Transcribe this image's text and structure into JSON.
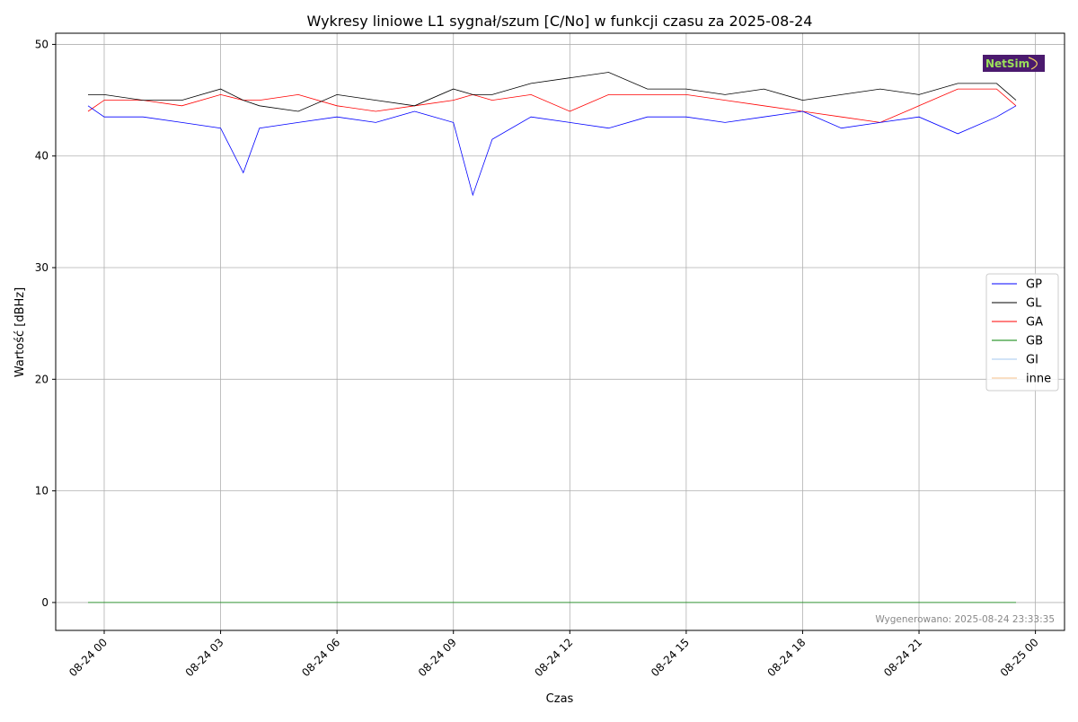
{
  "chart_data": {
    "type": "line",
    "title": "Wykresy liniowe L1 sygnał/szum [C/No] w funkcji czasu za 2025-08-24",
    "xlabel": "Czas",
    "ylabel": "Wartość [dBHz]",
    "ylim": [
      -2.5,
      51
    ],
    "yticks": [
      0,
      10,
      20,
      30,
      40,
      50
    ],
    "xlim": [
      "2025-08-23 22:45",
      "2025-08-25 00:45"
    ],
    "xticks": [
      {
        "t": "2025-08-24 00:00",
        "label": "08-24 00"
      },
      {
        "t": "2025-08-24 03:00",
        "label": "08-24 03"
      },
      {
        "t": "2025-08-24 06:00",
        "label": "08-24 06"
      },
      {
        "t": "2025-08-24 09:00",
        "label": "08-24 09"
      },
      {
        "t": "2025-08-24 12:00",
        "label": "08-24 12"
      },
      {
        "t": "2025-08-24 15:00",
        "label": "08-24 15"
      },
      {
        "t": "2025-08-24 18:00",
        "label": "08-24 18"
      },
      {
        "t": "2025-08-24 21:00",
        "label": "08-24 21"
      },
      {
        "t": "2025-08-25 00:00",
        "label": "08-25 00"
      }
    ],
    "grid": true,
    "legend_position": "center-right",
    "x": [
      "2025-08-23 23:35",
      "2025-08-24 00:00",
      "2025-08-24 01:00",
      "2025-08-24 02:00",
      "2025-08-24 03:00",
      "2025-08-24 03:35",
      "2025-08-24 04:00",
      "2025-08-24 05:00",
      "2025-08-24 06:00",
      "2025-08-24 07:00",
      "2025-08-24 08:00",
      "2025-08-24 09:00",
      "2025-08-24 09:30",
      "2025-08-24 10:00",
      "2025-08-24 11:00",
      "2025-08-24 12:00",
      "2025-08-24 13:00",
      "2025-08-24 14:00",
      "2025-08-24 15:00",
      "2025-08-24 16:00",
      "2025-08-24 17:00",
      "2025-08-24 18:00",
      "2025-08-24 19:00",
      "2025-08-24 20:00",
      "2025-08-24 21:00",
      "2025-08-24 22:00",
      "2025-08-24 23:00",
      "2025-08-24 23:30"
    ],
    "series": [
      {
        "name": "GP",
        "color": "#0000ff",
        "values": [
          44.5,
          43.5,
          43.5,
          43,
          42.5,
          38.5,
          42.5,
          43,
          43.5,
          43,
          44,
          43,
          36.5,
          41.5,
          43.5,
          43,
          42.5,
          43.5,
          43.5,
          43,
          43.5,
          44,
          42.5,
          43,
          43.5,
          42,
          43.5,
          44.5
        ]
      },
      {
        "name": "GL",
        "color": "#000000",
        "values": [
          45.5,
          45.5,
          45,
          45,
          46,
          45,
          44.5,
          44,
          45.5,
          45,
          44.5,
          46,
          45.5,
          45.5,
          46.5,
          47,
          47.5,
          46,
          46,
          45.5,
          46,
          45,
          45.5,
          46,
          45.5,
          46.5,
          46.5,
          45
        ]
      },
      {
        "name": "GA",
        "color": "#ff0000",
        "values": [
          44,
          45,
          45,
          44.5,
          45.5,
          45,
          45,
          45.5,
          44.5,
          44,
          44.5,
          45,
          45.5,
          45,
          45.5,
          44,
          45.5,
          45.5,
          45.5,
          45,
          44.5,
          44,
          43.5,
          43,
          44.5,
          46,
          46,
          44.5
        ]
      },
      {
        "name": "GB",
        "color": "#008000",
        "values": [
          0,
          0,
          0,
          0,
          0,
          0,
          0,
          0,
          0,
          0,
          0,
          0,
          0,
          0,
          0,
          0,
          0,
          0,
          0,
          0,
          0,
          0,
          0,
          0,
          0,
          0,
          0,
          0
        ]
      },
      {
        "name": "GI",
        "color": "#a6c8ef",
        "values": [
          0,
          0,
          0,
          0,
          0,
          0,
          0,
          0,
          0,
          0,
          0,
          0,
          0,
          0,
          0,
          0,
          0,
          0,
          0,
          0,
          0,
          0,
          0,
          0,
          0,
          0,
          0,
          0
        ]
      },
      {
        "name": "inne",
        "color": "#f5c08a",
        "values": [
          0,
          0,
          0,
          0,
          0,
          0,
          0,
          0,
          0,
          0,
          0,
          0,
          0,
          0,
          0,
          0,
          0,
          0,
          0,
          0,
          0,
          0,
          0,
          0,
          0,
          0,
          0,
          0
        ]
      }
    ],
    "annotation": "Wygenerowano: 2025-08-24 23:33:35",
    "logo_text": "NetSim"
  }
}
